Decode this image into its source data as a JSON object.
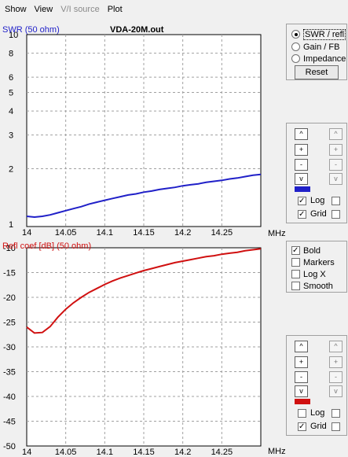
{
  "menu": [
    {
      "label": "Show",
      "enabled": true
    },
    {
      "label": "View",
      "enabled": true
    },
    {
      "label": "V/I source",
      "enabled": false
    },
    {
      "label": "Plot",
      "enabled": true
    }
  ],
  "file_title": "VDA-20M.out",
  "colors": {
    "swr_line": "#2020c8",
    "refl_line": "#d01010",
    "swr_label": "#2020c8",
    "refl_label": "#d01010"
  },
  "right_panel": {
    "radios": [
      {
        "label": "SWR / refl",
        "selected": true
      },
      {
        "label": "Gain / FB",
        "selected": false
      },
      {
        "label": "Impedance",
        "selected": false
      }
    ],
    "reset_label": "Reset",
    "options": [
      {
        "label": "Bold",
        "checked": true
      },
      {
        "label": "Markers",
        "checked": false
      },
      {
        "label": "Log X",
        "checked": false
      },
      {
        "label": "Smooth",
        "checked": false
      }
    ],
    "top_controls": {
      "log_label": "Log",
      "log_checked": true,
      "grid_label": "Grid",
      "grid_checked": true
    },
    "bottom_controls": {
      "log_label": "Log",
      "log_checked": false,
      "grid_label": "Grid",
      "grid_checked": true
    },
    "spin_symbols": [
      "^",
      "+",
      "-",
      "v"
    ]
  },
  "chart_data": [
    {
      "type": "line",
      "title": "VDA-20M.out",
      "ylabel": "SWR (50 ohm)",
      "xlabel": "MHz",
      "xlim": [
        14.0,
        14.3
      ],
      "ylim": [
        1,
        10
      ],
      "yscale": "log",
      "grid": true,
      "x_ticks": [
        "14",
        "14.05",
        "14.1",
        "14.15",
        "14.2",
        "14.25"
      ],
      "y_ticks": [
        "10",
        "8",
        "6",
        "5",
        "4",
        "3",
        "2",
        "1"
      ],
      "series": [
        {
          "x": [
            14.0,
            14.01,
            14.02,
            14.03,
            14.04,
            14.05,
            14.06,
            14.07,
            14.08,
            14.09,
            14.1,
            14.11,
            14.12,
            14.13,
            14.14,
            14.15,
            14.16,
            14.17,
            14.18,
            14.19,
            14.2,
            14.21,
            14.22,
            14.23,
            14.24,
            14.25,
            14.26,
            14.27,
            14.28,
            14.29,
            14.3
          ],
          "values": [
            1.13,
            1.12,
            1.13,
            1.15,
            1.18,
            1.21,
            1.24,
            1.27,
            1.31,
            1.34,
            1.37,
            1.4,
            1.43,
            1.46,
            1.48,
            1.51,
            1.53,
            1.56,
            1.58,
            1.6,
            1.63,
            1.65,
            1.67,
            1.7,
            1.72,
            1.74,
            1.77,
            1.79,
            1.82,
            1.85,
            1.87
          ]
        }
      ]
    },
    {
      "type": "line",
      "ylabel": "Refl coef [dB] (50 ohm)",
      "xlabel": "MHz",
      "xlim": [
        14.0,
        14.3
      ],
      "ylim": [
        -50,
        -10
      ],
      "grid": true,
      "x_ticks": [
        "14",
        "14.05",
        "14.1",
        "14.15",
        "14.2",
        "14.25"
      ],
      "y_ticks": [
        "-10",
        "-15",
        "-20",
        "-25",
        "-30",
        "-35",
        "-40",
        "-45",
        "-50"
      ],
      "series": [
        {
          "x": [
            14.0,
            14.01,
            14.02,
            14.03,
            14.04,
            14.05,
            14.06,
            14.07,
            14.08,
            14.09,
            14.1,
            14.11,
            14.12,
            14.13,
            14.14,
            14.15,
            14.16,
            14.17,
            14.18,
            14.19,
            14.2,
            14.21,
            14.22,
            14.23,
            14.24,
            14.25,
            14.26,
            14.27,
            14.28,
            14.29,
            14.3
          ],
          "values": [
            -26.0,
            -27.2,
            -27.1,
            -25.9,
            -24.0,
            -22.4,
            -21.1,
            -20.0,
            -19.0,
            -18.2,
            -17.4,
            -16.7,
            -16.1,
            -15.6,
            -15.1,
            -14.6,
            -14.2,
            -13.8,
            -13.4,
            -13.0,
            -12.7,
            -12.4,
            -12.1,
            -11.8,
            -11.6,
            -11.3,
            -11.1,
            -10.9,
            -10.6,
            -10.4,
            -10.2
          ]
        }
      ]
    }
  ]
}
